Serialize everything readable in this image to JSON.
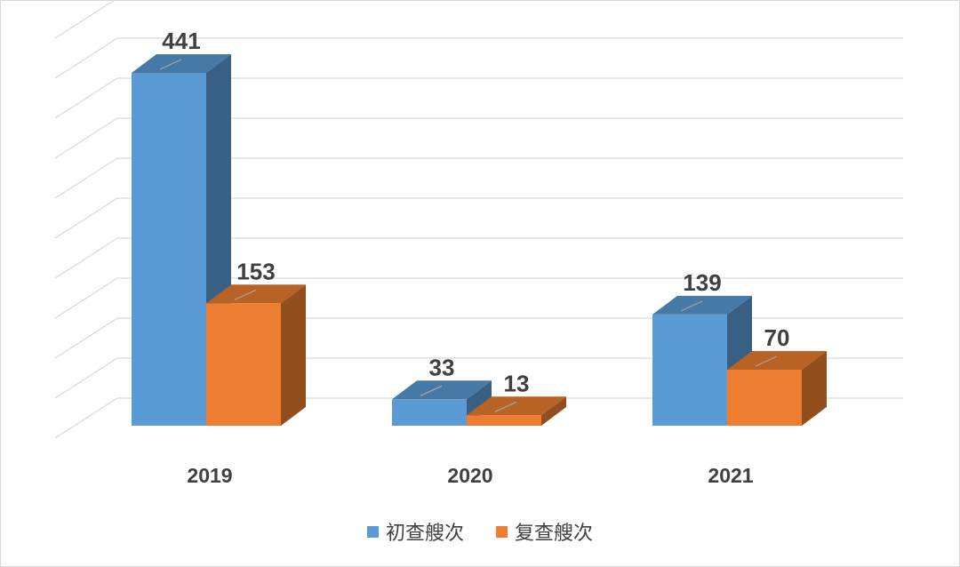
{
  "chart_data": {
    "type": "bar",
    "categories": [
      "2019",
      "2020",
      "2021"
    ],
    "series": [
      {
        "name": "初查艘次",
        "values": [
          441,
          33,
          139
        ],
        "color": "#5b9bd5"
      },
      {
        "name": "复查艘次",
        "values": [
          153,
          13,
          70
        ],
        "color": "#ed7d31"
      }
    ],
    "ylim": [
      0,
      500
    ],
    "grid": true,
    "legend_position": "bottom",
    "style": "3d-clustered-column"
  }
}
